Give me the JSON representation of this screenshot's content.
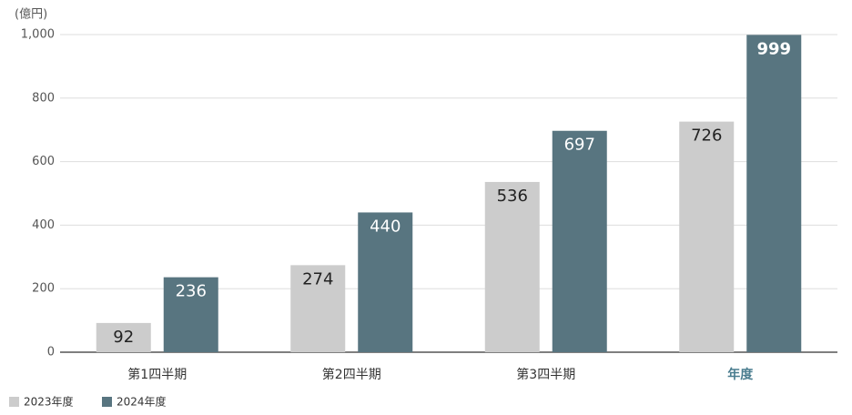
{
  "chart_data": {
    "type": "bar",
    "unit_label": "(億円)",
    "categories": [
      "第1四半期",
      "第2四半期",
      "第3四半期",
      "年度"
    ],
    "series": [
      {
        "name": "2023年度",
        "color": "#cccccc",
        "label_color": "#222222",
        "values": [
          92,
          274,
          536,
          726
        ]
      },
      {
        "name": "2024年度",
        "color": "#587580",
        "label_color": "#ffffff",
        "values": [
          236,
          440,
          697,
          999
        ]
      }
    ],
    "ylim": [
      0,
      1000
    ],
    "yticks": [
      0,
      200,
      400,
      600,
      800,
      {
        "value": 1000,
        "label": "1,000"
      }
    ],
    "grid": true
  }
}
